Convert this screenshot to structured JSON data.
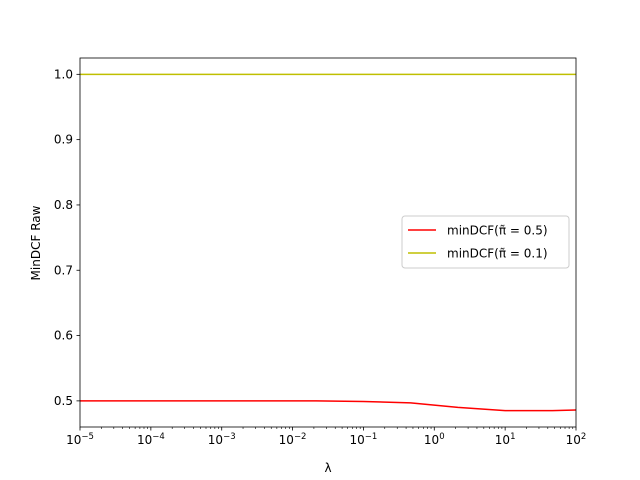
{
  "chart_data": {
    "type": "line",
    "title": "",
    "xlabel": "λ",
    "ylabel": "MinDCF Raw",
    "xscale": "log",
    "xlim": [
      1e-05,
      100
    ],
    "ylim": [
      0.46,
      1.025
    ],
    "grid": false,
    "legend_position": "center-right",
    "x_ticks": [
      {
        "value": 1e-05,
        "base": "10",
        "exp": "−5"
      },
      {
        "value": 0.0001,
        "base": "10",
        "exp": "−4"
      },
      {
        "value": 0.001,
        "base": "10",
        "exp": "−3"
      },
      {
        "value": 0.01,
        "base": "10",
        "exp": "−2"
      },
      {
        "value": 0.1,
        "base": "10",
        "exp": "−1"
      },
      {
        "value": 1,
        "base": "10",
        "exp": "0"
      },
      {
        "value": 10,
        "base": "10",
        "exp": "1"
      },
      {
        "value": 100,
        "base": "10",
        "exp": "2"
      }
    ],
    "y_ticks": [
      {
        "value": 0.5,
        "label": "0.5"
      },
      {
        "value": 0.6,
        "label": "0.6"
      },
      {
        "value": 0.7,
        "label": "0.7"
      },
      {
        "value": 0.8,
        "label": "0.8"
      },
      {
        "value": 0.9,
        "label": "0.9"
      },
      {
        "value": 1.0,
        "label": "1.0"
      }
    ],
    "x": [
      1e-05,
      4.64e-05,
      0.000215,
      0.001,
      0.00464,
      0.0215,
      0.1,
      0.464,
      2.15,
      10,
      46.4,
      100
    ],
    "series": [
      {
        "name": "minDCF(π̃ = 0.5)",
        "color": "#ff0000",
        "values": [
          0.5,
          0.5,
          0.5,
          0.5,
          0.5,
          0.5,
          0.499,
          0.497,
          0.49,
          0.485,
          0.485,
          0.486
        ]
      },
      {
        "name": "minDCF(π̃ = 0.1)",
        "color": "#bfbf00",
        "values": [
          1.0,
          1.0,
          1.0,
          1.0,
          1.0,
          1.0,
          1.0,
          1.0,
          1.0,
          1.0,
          1.0,
          1.0
        ]
      }
    ]
  }
}
